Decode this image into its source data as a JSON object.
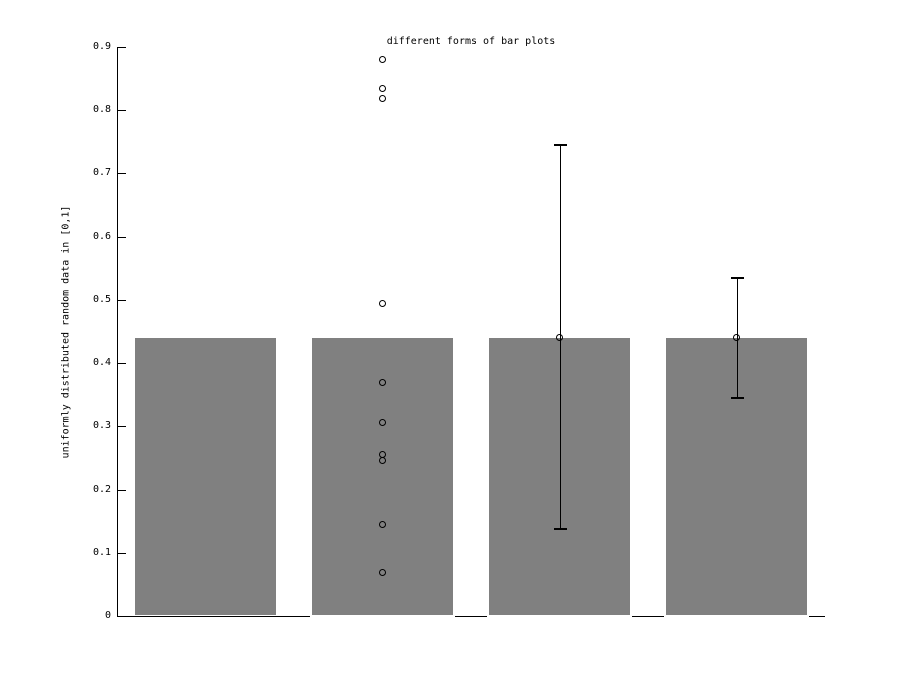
{
  "colors": {
    "bar_fill": "#808080",
    "axis": "#000000",
    "marker": "#000000",
    "background": "#ffffff"
  },
  "chart_data": {
    "type": "bar",
    "title": "different forms of bar plots",
    "xlabel": "",
    "ylabel": "uniformly distributed random data in [0,1]",
    "ylim": [
      0,
      0.9
    ],
    "xlim": [
      0.5,
      4.5
    ],
    "grid": false,
    "legend": false,
    "yticks": [
      {
        "value": 0.0,
        "label": "0"
      },
      {
        "value": 0.1,
        "label": "0.1"
      },
      {
        "value": 0.2,
        "label": "0.2"
      },
      {
        "value": 0.3,
        "label": "0.3"
      },
      {
        "value": 0.4,
        "label": "0.4"
      },
      {
        "value": 0.5,
        "label": "0.5"
      },
      {
        "value": 0.6,
        "label": "0.6"
      },
      {
        "value": 0.7,
        "label": "0.7"
      },
      {
        "value": 0.8,
        "label": "0.8"
      },
      {
        "value": 0.9,
        "label": "0.9"
      }
    ],
    "bar_width_fraction": 0.8,
    "bars": [
      {
        "x": 1,
        "value": 0.44,
        "overlay": "none"
      },
      {
        "x": 2,
        "value": 0.44,
        "overlay": "scatter",
        "points": [
          0.881,
          0.835,
          0.819,
          0.495,
          0.369,
          0.306,
          0.256,
          0.246,
          0.144,
          0.069
        ]
      },
      {
        "x": 3,
        "value": 0.44,
        "overlay": "errorbar",
        "marker_value": 0.44,
        "error_low": 0.137,
        "error_high": 0.745
      },
      {
        "x": 4,
        "value": 0.44,
        "overlay": "errorbar",
        "marker_value": 0.44,
        "error_low": 0.345,
        "error_high": 0.535
      }
    ]
  }
}
